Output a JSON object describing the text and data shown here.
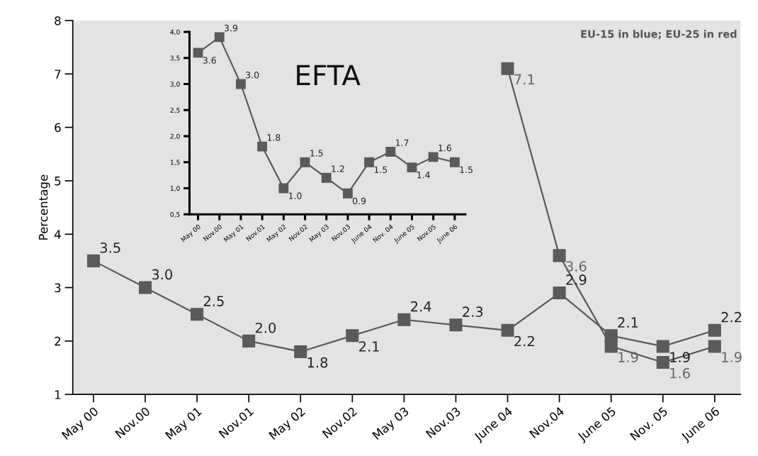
{
  "chart_data": [
    {
      "type": "line",
      "ylabel": "Percentage",
      "annotations": [
        "EU-15 in blue; EU-25 in red"
      ],
      "categories": [
        "May 00",
        "Nov.00",
        "May 01",
        "Nov.01",
        "May 02",
        "Nov.02",
        "May 03",
        "Nov.03",
        "June 04",
        "Nov.04",
        "June 05",
        "Nov. 05",
        "June 06"
      ],
      "series": [
        {
          "color": "#5a5a5a",
          "values": [
            3.5,
            3.0,
            2.5,
            2.0,
            1.8,
            2.1,
            2.4,
            2.3,
            2.2,
            2.9,
            2.1,
            1.9,
            2.2
          ],
          "value_labels": [
            "3.5",
            "3.0",
            "2.5",
            "2.0",
            "1.8",
            "2.1",
            "2.4",
            "2.3",
            "2.2",
            "2.9",
            "2.1",
            "1.9",
            "2.2"
          ]
        },
        {
          "color": "#5a5a5a",
          "values": [
            null,
            null,
            null,
            null,
            null,
            null,
            null,
            null,
            7.1,
            3.6,
            1.9,
            1.6,
            1.9
          ],
          "value_labels": [
            null,
            null,
            null,
            null,
            null,
            null,
            null,
            null,
            "7.1",
            "3.6",
            "1.9",
            "1.6",
            "1.9"
          ]
        }
      ],
      "ylim": [
        1,
        8
      ],
      "yticks": [
        1,
        2,
        3,
        4,
        5,
        6,
        7,
        8
      ],
      "marker": "square",
      "line_style": "solid"
    },
    {
      "type": "line",
      "title": "EFTA",
      "categories": [
        "May 00",
        "Nov.00",
        "May 01",
        "Nov.01",
        "May 02",
        "Nov.02",
        "May 03",
        "Nov.03",
        "June 04",
        "Nov. 04",
        "June 05",
        "Nov.05",
        "June 06"
      ],
      "series": [
        {
          "color": "#5a5a5a",
          "values": [
            3.6,
            3.9,
            3.0,
            1.8,
            1.0,
            1.5,
            1.2,
            0.9,
            1.5,
            1.7,
            1.4,
            1.6,
            1.5
          ],
          "value_labels": [
            "3.6",
            "3.9",
            "3.0",
            "1.8",
            "1.0",
            "1.5",
            "1.2",
            "0.9",
            "1.5",
            "1.7",
            "1.4",
            "1.6",
            "1.5"
          ]
        }
      ],
      "ylim": [
        0.5,
        4.0
      ],
      "yticks": [
        {
          "value": 0.5,
          "label": "0,5"
        },
        {
          "value": 1.0,
          "label": "1,0"
        },
        {
          "value": 1.5,
          "label": "1,5"
        },
        {
          "value": 2.0,
          "label": "2,0"
        },
        {
          "value": 2.5,
          "label": "2,5"
        },
        {
          "value": 3.0,
          "label": "3,0"
        },
        {
          "value": 3.5,
          "label": "3,5"
        },
        {
          "value": 4.0,
          "label": "4,0"
        }
      ],
      "marker": "square",
      "line_style": "solid"
    }
  ]
}
